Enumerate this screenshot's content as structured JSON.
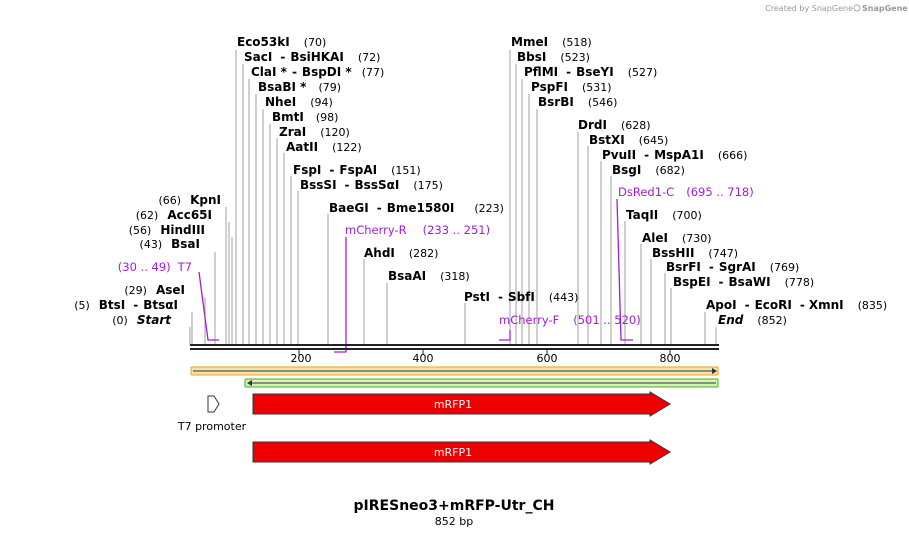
{
  "credit": "Created by SnapGene",
  "title": "pIRESneo3+mRFP-Utr_CH",
  "length_label": "852 bp",
  "axis": {
    "ticks": [
      "200",
      "400",
      "600",
      "800"
    ]
  },
  "enzymes_left": [
    {
      "name": "Eco53kI",
      "pos": "(70)"
    },
    {
      "name": "SacI",
      "sep": "-",
      "name2": "BsiHKAI",
      "pos": "(72)"
    },
    {
      "name": "ClaI *",
      "sep": "-",
      "name2": "BspDI *",
      "pos": "(77)"
    },
    {
      "name": "BsaBI *",
      "pos": "(79)"
    },
    {
      "name": "NheI",
      "pos": "(94)"
    },
    {
      "name": "BmtI",
      "pos": "(98)"
    },
    {
      "name": "ZraI",
      "pos": "(120)"
    },
    {
      "name": "AatII",
      "pos": "(122)"
    },
    {
      "name": "FspI",
      "sep": "-",
      "name2": "FspAI",
      "pos": "(151)"
    },
    {
      "name": "BssSI",
      "sep": "-",
      "name2": "BssSαI",
      "pos": "(175)"
    },
    {
      "name": "BaeGI",
      "sep": "-",
      "name2": "Bme1580I",
      "pos": "(223)"
    },
    {
      "name": "AhdI",
      "pos": "(282)"
    },
    {
      "name": "BsaAI",
      "pos": "(318)"
    }
  ],
  "enzymes_leftside": [
    {
      "pos": "(66)",
      "name": "KpnI"
    },
    {
      "pos": "(62)",
      "name": "Acc65I"
    },
    {
      "pos": "(56)",
      "name": "HindIII"
    },
    {
      "pos": "(43)",
      "name": "BsaI"
    },
    {
      "pos": "(29)",
      "name": "AseI"
    },
    {
      "pos": "(5)",
      "name": "BtsI",
      "sep": "-",
      "name2": "BtsαI"
    },
    {
      "pos": "(0)",
      "name": "Start"
    }
  ],
  "enzymes_right": [
    {
      "name": "MmeI",
      "pos": "(518)"
    },
    {
      "name": "BbsI",
      "pos": "(523)"
    },
    {
      "name": "PflMI",
      "sep": "-",
      "name2": "BseYI",
      "pos": "(527)"
    },
    {
      "name": "PspFI",
      "pos": "(531)"
    },
    {
      "name": "BsrBI",
      "pos": "(546)"
    },
    {
      "name": "DrdI",
      "pos": "(628)"
    },
    {
      "name": "BstXI",
      "pos": "(645)"
    },
    {
      "name": "PvuII",
      "sep": "-",
      "name2": "MspA1I",
      "pos": "(666)"
    },
    {
      "name": "BsgI",
      "pos": "(682)"
    },
    {
      "name": "TaqII",
      "pos": "(700)"
    },
    {
      "name": "AleI",
      "pos": "(730)"
    },
    {
      "name": "BssHII",
      "pos": "(747)"
    },
    {
      "name": "BsrFI",
      "sep": "-",
      "name2": "SgrAI",
      "pos": "(769)"
    },
    {
      "name": "BspEI",
      "sep": "-",
      "name2": "BsaWI",
      "pos": "(778)"
    },
    {
      "name": "ApoI",
      "sep": "-",
      "name2": "EcoRI",
      "sep2": "-",
      "name3": "XmnI",
      "pos": "(835)"
    },
    {
      "name": "End",
      "pos": "(852)"
    }
  ],
  "pst": {
    "name": "PstI",
    "sep": "-",
    "name2": "SbfI",
    "pos": "(443)"
  },
  "primers": {
    "t7": {
      "range": "(30 .. 49)",
      "name": "T7"
    },
    "mcherry_r": {
      "name": "mCherry-R",
      "range": "(233 .. 251)"
    },
    "mcherry_f": {
      "name": "mCherry-F",
      "range": "(501 .. 520)"
    },
    "dsred": {
      "name": "DsRed1-C",
      "range": "(695 .. 718)"
    }
  },
  "features": {
    "t7_promoter": "T7 promoter",
    "mrfp1_a": "mRFP1",
    "mrfp1_b": "mRFP1"
  },
  "colors": {
    "primer": "#a020c8",
    "orf_top": "#f0a020",
    "orf_bottom": "#40b020",
    "mrfp": "#ee0000"
  }
}
